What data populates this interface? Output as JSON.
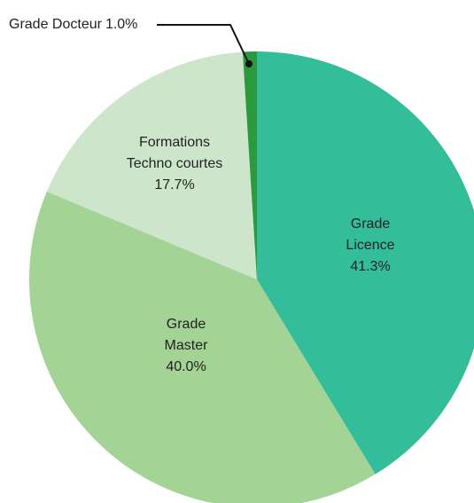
{
  "chart_data": {
    "type": "pie",
    "categories": [
      "Grade Licence",
      "Grade Master",
      "Formations Techno courtes",
      "Grade Docteur"
    ],
    "values": [
      41.3,
      40.0,
      17.7,
      1.0
    ],
    "value_labels": [
      "41.3%",
      "40.0%",
      "17.7%",
      "1.0%"
    ],
    "colors": [
      "#33bd9a",
      "#a3d395",
      "#cde6cb",
      "#2a9a3d"
    ]
  }
}
